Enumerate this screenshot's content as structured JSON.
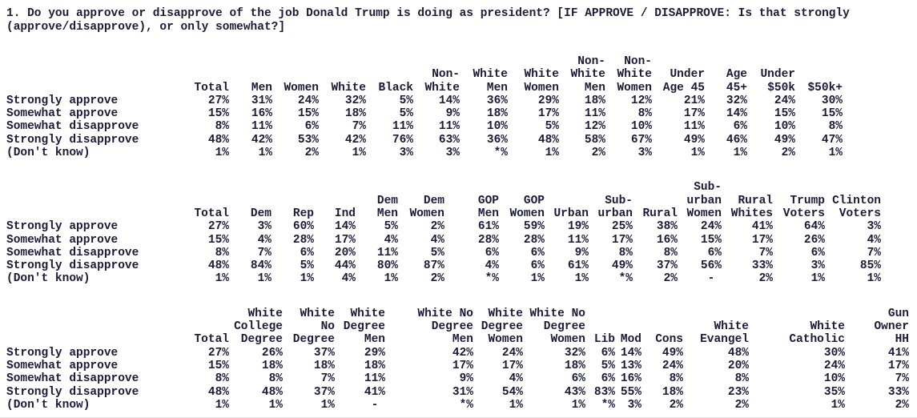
{
  "question": "1. Do you approve or disapprove of the job Donald Trump is doing as president? [IF APPROVE / DISAPPROVE: Is that strongly (approve/disapprove), or only somewhat?]",
  "text_color": "#1b1b3a",
  "tables": [
    {
      "columns": [
        {
          "lines": [
            "Total"
          ]
        },
        {
          "lines": [
            "Men"
          ]
        },
        {
          "lines": [
            "Women"
          ]
        },
        {
          "lines": [
            "White"
          ]
        },
        {
          "lines": [
            "Black"
          ]
        },
        {
          "lines": [
            "Non-",
            "White"
          ]
        },
        {
          "lines": [
            "White",
            "Men"
          ]
        },
        {
          "lines": [
            "White",
            "Women"
          ]
        },
        {
          "lines": [
            "Non-",
            "White",
            "Men"
          ]
        },
        {
          "lines": [
            "Non-",
            "White",
            "Women"
          ]
        },
        {
          "lines": [
            "Under",
            "Age 45"
          ]
        },
        {
          "lines": [
            "Age",
            "45+"
          ]
        },
        {
          "lines": [
            "Under",
            "$50k"
          ]
        },
        {
          "lines": [
            "$50k+"
          ]
        }
      ],
      "rows": [
        {
          "label": "Strongly approve",
          "values": [
            "27%",
            "31%",
            "24%",
            "32%",
            "5%",
            "14%",
            "36%",
            "29%",
            "18%",
            "12%",
            "21%",
            "32%",
            "24%",
            "30%"
          ]
        },
        {
          "label": "Somewhat approve",
          "values": [
            "15%",
            "16%",
            "15%",
            "18%",
            "5%",
            "9%",
            "18%",
            "17%",
            "11%",
            "8%",
            "17%",
            "14%",
            "15%",
            "15%"
          ]
        },
        {
          "label": "Somewhat disapprove",
          "values": [
            "8%",
            "11%",
            "6%",
            "7%",
            "11%",
            "11%",
            "10%",
            "5%",
            "12%",
            "10%",
            "11%",
            "6%",
            "10%",
            "8%"
          ]
        },
        {
          "label": "Strongly disapprove",
          "values": [
            "48%",
            "42%",
            "53%",
            "42%",
            "76%",
            "63%",
            "36%",
            "48%",
            "58%",
            "67%",
            "49%",
            "46%",
            "49%",
            "47%"
          ]
        },
        {
          "label": "(Don't know)",
          "values": [
            "1%",
            "1%",
            "2%",
            "1%",
            "3%",
            "3%",
            "*%",
            "1%",
            "2%",
            "3%",
            "1%",
            "1%",
            "2%",
            "1%"
          ]
        }
      ]
    },
    {
      "columns": [
        {
          "lines": [
            "Total"
          ]
        },
        {
          "lines": [
            "Dem"
          ]
        },
        {
          "lines": [
            "Rep"
          ]
        },
        {
          "lines": [
            "Ind"
          ]
        },
        {
          "lines": [
            "Dem",
            "Men"
          ]
        },
        {
          "lines": [
            "Dem",
            "Women"
          ]
        },
        {
          "lines": [
            "GOP",
            "Men"
          ]
        },
        {
          "lines": [
            "GOP",
            "Women"
          ]
        },
        {
          "lines": [
            "Urban"
          ]
        },
        {
          "lines": [
            "Sub-",
            "urban"
          ]
        },
        {
          "lines": [
            "Rural"
          ]
        },
        {
          "lines": [
            "Sub-",
            "urban",
            "Women"
          ]
        },
        {
          "lines": [
            "Rural",
            "Whites"
          ]
        },
        {
          "lines": [
            "Trump",
            "Voters"
          ]
        },
        {
          "lines": [
            "Clinton",
            "Voters"
          ]
        }
      ],
      "rows": [
        {
          "label": "Strongly approve",
          "values": [
            "27%",
            "3%",
            "60%",
            "14%",
            "5%",
            "2%",
            "61%",
            "59%",
            "19%",
            "25%",
            "38%",
            "24%",
            "41%",
            "64%",
            "3%"
          ]
        },
        {
          "label": "Somewhat approve",
          "values": [
            "15%",
            "4%",
            "28%",
            "17%",
            "4%",
            "4%",
            "28%",
            "28%",
            "11%",
            "17%",
            "16%",
            "15%",
            "17%",
            "26%",
            "4%"
          ]
        },
        {
          "label": "Somewhat disapprove",
          "values": [
            "8%",
            "7%",
            "6%",
            "20%",
            "11%",
            "5%",
            "6%",
            "6%",
            "9%",
            "8%",
            "8%",
            "6%",
            "7%",
            "6%",
            "7%"
          ]
        },
        {
          "label": "Strongly disapprove",
          "values": [
            "48%",
            "84%",
            "5%",
            "44%",
            "80%",
            "87%",
            "4%",
            "6%",
            "61%",
            "49%",
            "37%",
            "56%",
            "33%",
            "3%",
            "85%"
          ]
        },
        {
          "label": "(Don't know)",
          "values": [
            "1%",
            "1%",
            "1%",
            "4%",
            "1%",
            "2%",
            "*%",
            "1%",
            "1%",
            "*%",
            "2%",
            "- ",
            "2%",
            "1%",
            "1%"
          ]
        }
      ]
    },
    {
      "columns": [
        {
          "lines": [
            "Total"
          ]
        },
        {
          "lines": [
            "White",
            "College",
            "Degree"
          ]
        },
        {
          "lines": [
            "White",
            "No",
            "Degree"
          ]
        },
        {
          "lines": [
            "White",
            "Degree",
            "Men"
          ]
        },
        {
          "lines": [
            "White No",
            "Degree",
            "Men"
          ]
        },
        {
          "lines": [
            "White",
            "Degree",
            "Women"
          ]
        },
        {
          "lines": [
            "White No",
            "Degree",
            "Women"
          ]
        },
        {
          "lines": [
            "Lib"
          ]
        },
        {
          "lines": [
            "Mod"
          ]
        },
        {
          "lines": [
            "Cons"
          ]
        },
        {
          "lines": [
            "White",
            "Evangel"
          ]
        },
        {
          "lines": [
            "White",
            "Catholic"
          ]
        },
        {
          "lines": [
            "Gun",
            "Owner",
            "HH"
          ]
        }
      ],
      "rows": [
        {
          "label": "Strongly approve",
          "values": [
            "27%",
            "26%",
            "37%",
            "29%",
            "42%",
            "24%",
            "32%",
            "6%",
            "14%",
            "49%",
            "48%",
            "30%",
            "41%"
          ]
        },
        {
          "label": "Somewhat approve",
          "values": [
            "15%",
            "18%",
            "18%",
            "18%",
            "17%",
            "17%",
            "18%",
            "5%",
            "13%",
            "24%",
            "20%",
            "24%",
            "17%"
          ]
        },
        {
          "label": "Somewhat disapprove",
          "values": [
            "8%",
            "8%",
            "7%",
            "11%",
            "9%",
            "4%",
            "6%",
            "6%",
            "16%",
            "8%",
            "8%",
            "10%",
            "7%"
          ]
        },
        {
          "label": "Strongly disapprove",
          "values": [
            "48%",
            "48%",
            "37%",
            "41%",
            "31%",
            "54%",
            "43%",
            "83%",
            "55%",
            "18%",
            "23%",
            "35%",
            "33%"
          ]
        },
        {
          "label": "(Don't know)",
          "values": [
            "1%",
            "1%",
            "1%",
            "- ",
            "*%",
            "1%",
            "1%",
            "*%",
            "3%",
            "2%",
            "2%",
            "1%",
            "2%"
          ]
        }
      ]
    }
  ]
}
